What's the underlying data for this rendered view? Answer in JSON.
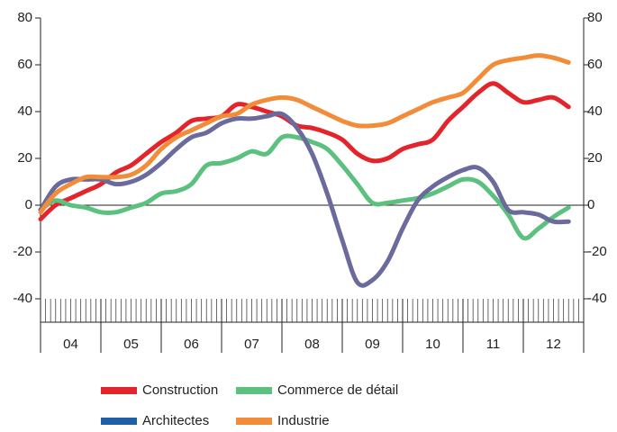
{
  "chart_data": {
    "type": "line",
    "x": [
      4.0,
      4.25,
      4.5,
      4.75,
      5.0,
      5.25,
      5.5,
      5.75,
      6.0,
      6.25,
      6.5,
      6.75,
      7.0,
      7.25,
      7.5,
      7.75,
      8.0,
      8.25,
      8.5,
      8.75,
      9.0,
      9.25,
      9.5,
      9.75,
      10.0,
      10.25,
      10.5,
      10.75,
      11.0,
      11.25,
      11.5,
      11.75,
      12.0,
      12.25,
      12.5,
      12.75
    ],
    "xlim": [
      4,
      13
    ],
    "xticks": [
      {
        "value": 4.5,
        "label": "04"
      },
      {
        "value": 5.5,
        "label": "05"
      },
      {
        "value": 6.5,
        "label": "06"
      },
      {
        "value": 7.5,
        "label": "07"
      },
      {
        "value": 8.5,
        "label": "08"
      },
      {
        "value": 9.5,
        "label": "09"
      },
      {
        "value": 10.5,
        "label": "10"
      },
      {
        "value": 11.5,
        "label": "11"
      },
      {
        "value": 12.5,
        "label": "12"
      }
    ],
    "ylim": [
      -40,
      80
    ],
    "yticks": [
      -40,
      -20,
      0,
      20,
      40,
      60,
      80
    ],
    "series": [
      {
        "name": "Construction",
        "color": "#e3242b",
        "values": [
          -6,
          0,
          3,
          6,
          9,
          14,
          17,
          22,
          27,
          31,
          36,
          37,
          38,
          43,
          42,
          40,
          38,
          34,
          33,
          31,
          28,
          22,
          19,
          20,
          24,
          26,
          28,
          36,
          42,
          48,
          52,
          48,
          44,
          45,
          46,
          42
        ]
      },
      {
        "name": "Commerce de détail",
        "color": "#5cc07e",
        "values": [
          -2,
          2,
          0,
          -1,
          -3,
          -3,
          -1,
          1,
          5,
          6,
          9,
          17,
          18,
          20,
          23,
          22,
          29,
          29,
          27,
          24,
          17,
          9,
          1,
          1,
          2,
          3,
          5,
          8,
          11,
          10,
          4,
          -4,
          -14,
          -10,
          -5,
          -1
        ]
      },
      {
        "name": "Architectes",
        "color": "#6b6a9c",
        "legend_color": "#1f5fa6",
        "values": [
          -2,
          8,
          11,
          11,
          11,
          9,
          10,
          13,
          18,
          24,
          29,
          31,
          35,
          37,
          37,
          38,
          39,
          33,
          22,
          5,
          -15,
          -33,
          -32,
          -24,
          -10,
          2,
          8,
          12,
          15,
          16,
          10,
          -2,
          -3,
          -4,
          -7,
          -7
        ]
      },
      {
        "name": "Industrie",
        "color": "#f28c38",
        "values": [
          -3,
          5,
          9,
          12,
          12,
          12,
          13,
          17,
          24,
          29,
          32,
          35,
          38,
          39,
          43,
          45,
          46,
          45,
          42,
          39,
          36,
          34,
          34,
          35,
          38,
          41,
          44,
          46,
          48,
          54,
          60,
          62,
          63,
          64,
          63,
          61
        ]
      }
    ]
  }
}
